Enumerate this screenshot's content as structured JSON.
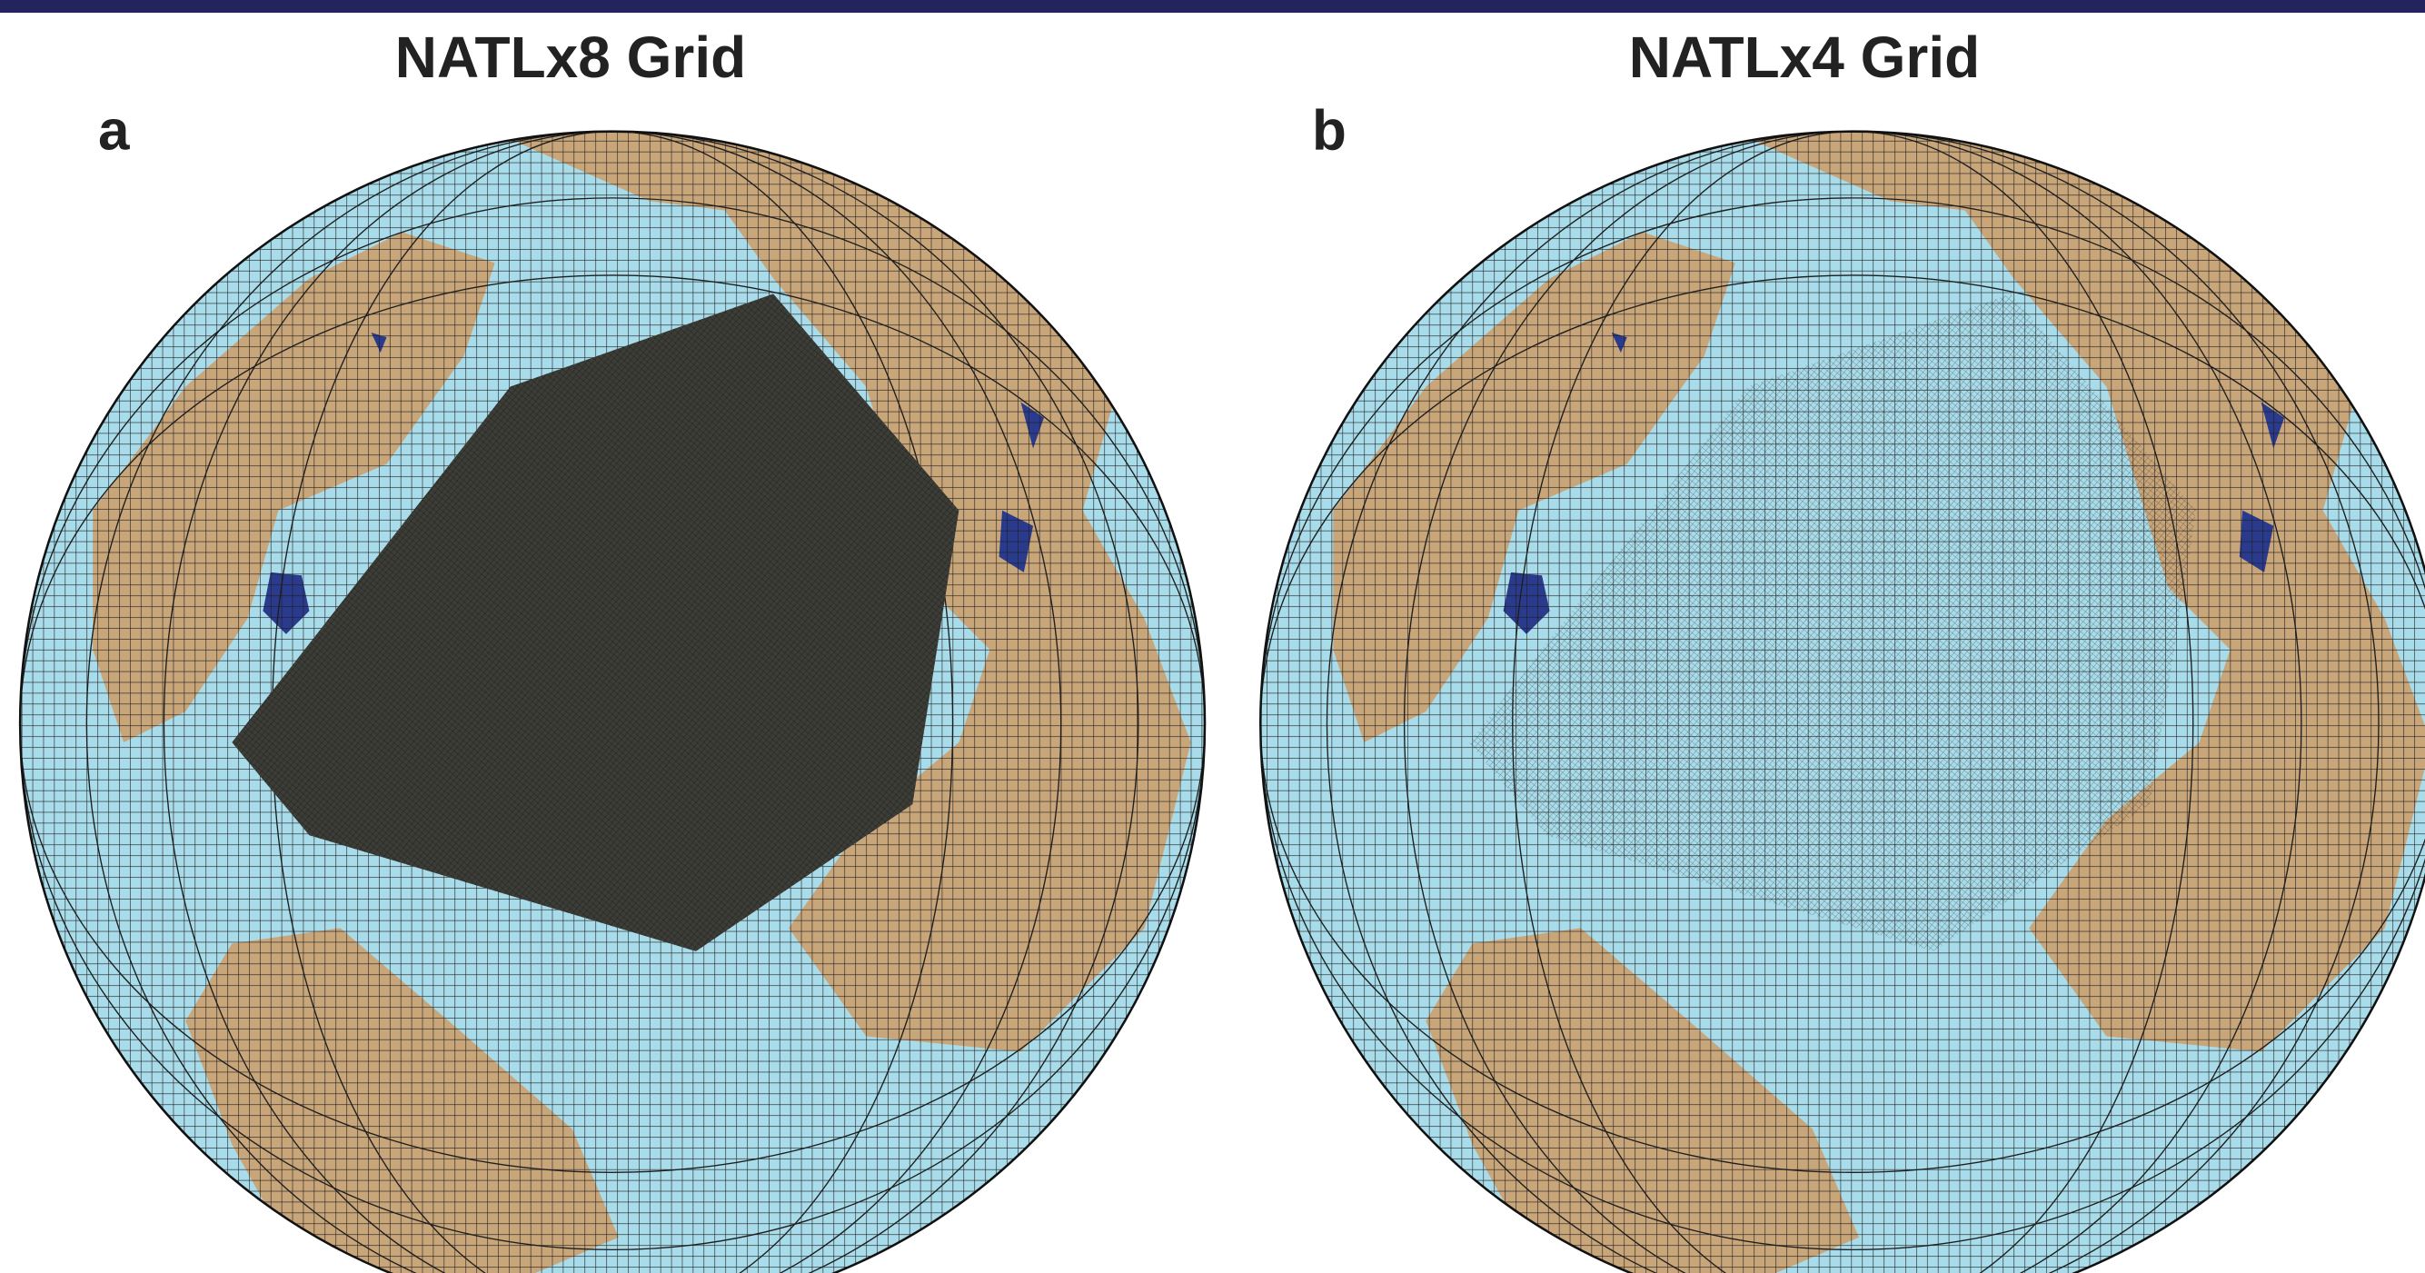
{
  "panels": [
    {
      "title": "NATLx8 Grid",
      "label": "a"
    },
    {
      "title": "NATLx4 Grid",
      "label": "b"
    }
  ]
}
